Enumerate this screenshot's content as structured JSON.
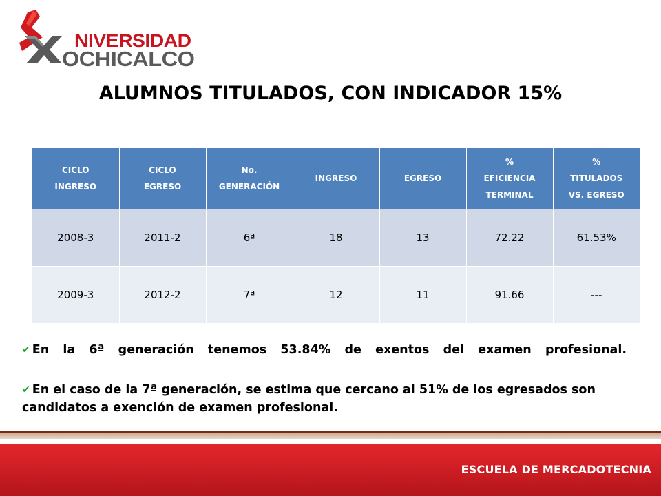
{
  "logo": {
    "line1": "NIVERSIDAD",
    "line2": "OCHICALCO",
    "colors": {
      "red": "#c8141e",
      "gray": "#5a5a5a"
    }
  },
  "title": "ALUMNOS TITULADOS, CON INDICADOR 15%",
  "table": {
    "headers": [
      [
        "CICLO",
        "INGRESO"
      ],
      [
        "CICLO",
        "EGRESO"
      ],
      [
        "No.",
        "GENERACIÓN"
      ],
      [
        "INGRESO"
      ],
      [
        "EGRESO"
      ],
      [
        "%",
        "EFICIENCIA",
        "TERMINAL"
      ],
      [
        "%",
        "TITULADOS",
        "VS. EGRESO"
      ]
    ],
    "rows": [
      [
        "2008-3",
        "2011-2",
        "6ª",
        "18",
        "13",
        "72.22",
        "61.53%"
      ],
      [
        "2009-3",
        "2012-2",
        "7ª",
        "12",
        "11",
        "91.66",
        "---"
      ]
    ],
    "colors": {
      "header": "#4f81bd",
      "row_odd": "#d0d8e8",
      "row_even": "#e9edf4"
    }
  },
  "bullets": [
    "En la 6ª generación tenemos 53.84% de exentos del examen profesional.",
    "En el caso de la 7ª generación, se estima que cercano al 51% de los egresados son candidatos a exención de examen profesional."
  ],
  "check_icon": "checkmark-icon",
  "footer": {
    "label": "ESCUELA DE MERCADOTECNIA",
    "color": "#d11f25"
  }
}
